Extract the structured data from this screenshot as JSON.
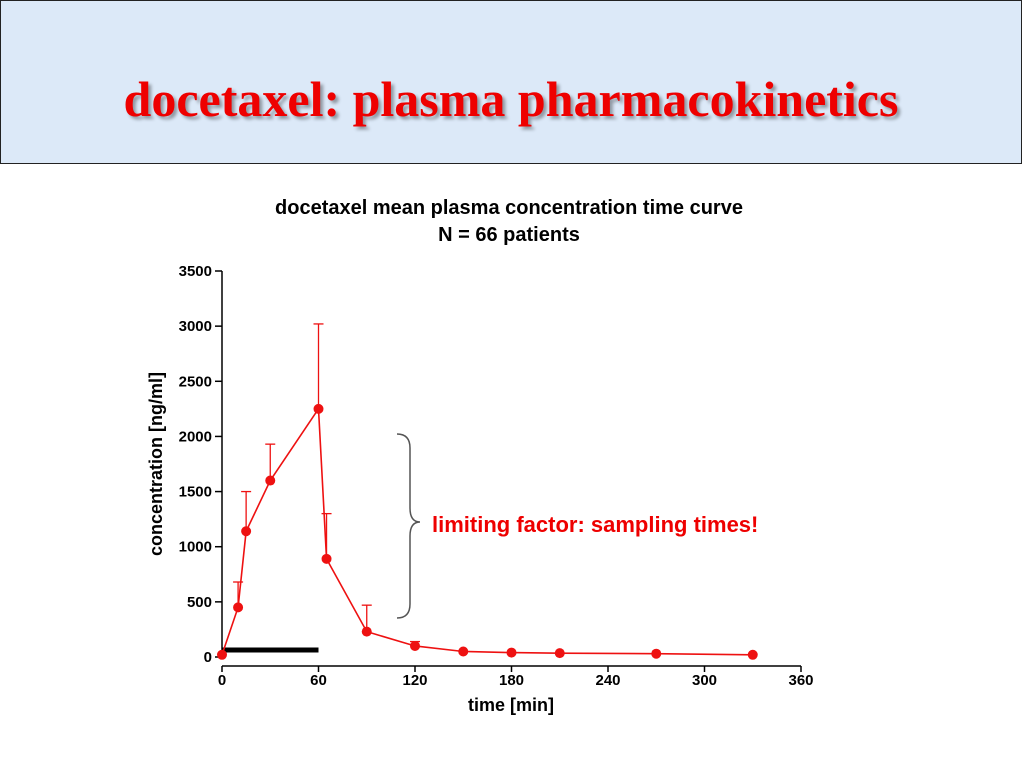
{
  "slide": {
    "title": "docetaxel: plasma pharmacokinetics"
  },
  "chart_data": {
    "type": "line",
    "title": "docetaxel mean plasma concentration time curve",
    "subtitle": "N = 66 patients",
    "xlabel": "time [min]",
    "ylabel": "concentration [ng/ml]",
    "xlim": [
      0,
      360
    ],
    "ylim": [
      0,
      3500
    ],
    "xticks": [
      0,
      60,
      120,
      180,
      240,
      300,
      360
    ],
    "yticks": [
      0,
      500,
      1000,
      1500,
      2000,
      2500,
      3000,
      3500
    ],
    "grid": false,
    "series": [
      {
        "color": "#ee1111",
        "x": [
          0,
          10,
          15,
          30,
          60,
          65,
          90,
          120,
          150,
          180,
          210,
          270,
          330
        ],
        "y": [
          20,
          450,
          1140,
          1600,
          2250,
          890,
          230,
          100,
          50,
          40,
          35,
          30,
          20
        ],
        "error_upper": [
          null,
          680,
          1500,
          1930,
          3020,
          1300,
          470,
          140,
          null,
          null,
          null,
          null,
          null
        ]
      }
    ],
    "infusion_bar": {
      "x_start": 0,
      "x_end": 60,
      "color": "#000000"
    },
    "annotation": "limiting factor: sampling times!",
    "annotation_color": "#ee0000"
  }
}
